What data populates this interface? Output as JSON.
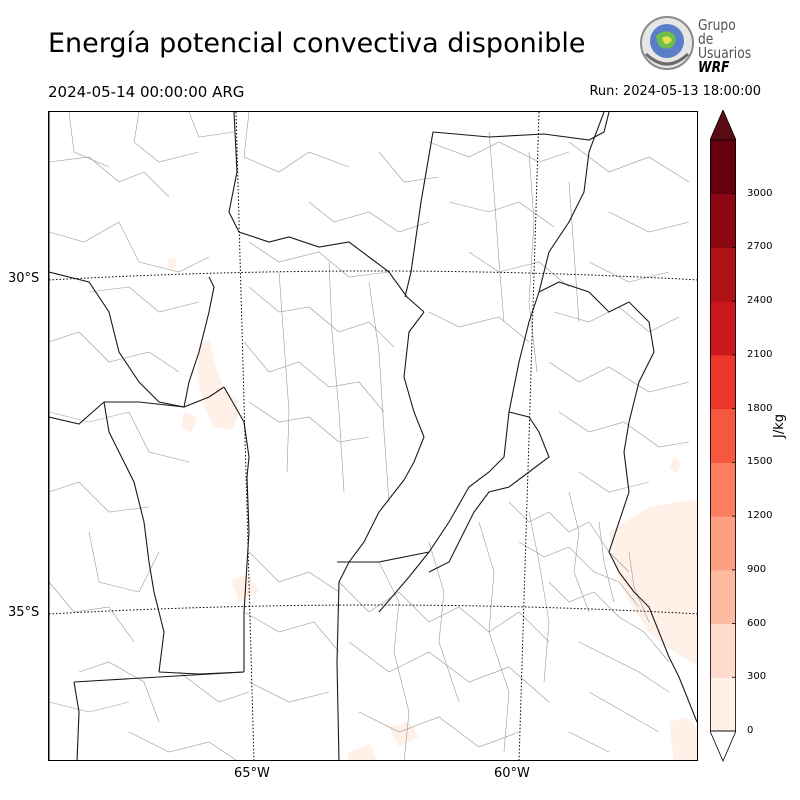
{
  "header": {
    "title": "Energía potencial convectiva disponible",
    "valid_time": "2024-05-14 00:00:00 ARG",
    "run_time": "Run: 2024-05-13 18:00:00"
  },
  "logo": {
    "line1": "Grupo de",
    "line2": "Usuarios",
    "line3": "WRF"
  },
  "map": {
    "lat_labels": [
      "30°S",
      "35°S"
    ],
    "lon_labels": [
      "65°W",
      "60°W"
    ]
  },
  "colorbar": {
    "label": "J/kg",
    "ticks": [
      "0",
      "300",
      "600",
      "900",
      "1200",
      "1500",
      "1800",
      "2100",
      "2400",
      "2700",
      "3000"
    ],
    "colors": [
      "#fff0e8",
      "#fedbcc",
      "#fcbba1",
      "#fc9f82",
      "#fb7f5f",
      "#f6583f",
      "#ea372a",
      "#cb181d",
      "#ad1217",
      "#8b0812",
      "#67000d"
    ],
    "over_color": "#5a0a12",
    "under_color": "#ffffff"
  }
}
